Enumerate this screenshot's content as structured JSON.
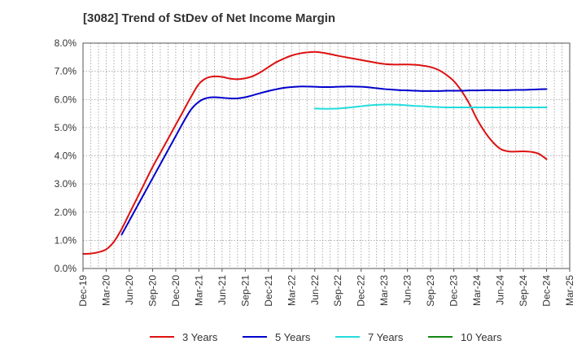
{
  "chart_data": {
    "type": "line",
    "title": "[3082]  Trend of StDev of Net Income Margin",
    "xlabel": "",
    "ylabel": "",
    "ylim": [
      0,
      8
    ],
    "grid": true,
    "legend_position": "bottom",
    "y_ticks": [
      "0.0%",
      "1.0%",
      "2.0%",
      "3.0%",
      "4.0%",
      "5.0%",
      "6.0%",
      "7.0%",
      "8.0%"
    ],
    "x_ticks": [
      "Dec-19",
      "Mar-20",
      "Jun-20",
      "Sep-20",
      "Dec-20",
      "Mar-21",
      "Jun-21",
      "Sep-21",
      "Dec-21",
      "Mar-22",
      "Jun-22",
      "Sep-22",
      "Dec-22",
      "Mar-23",
      "Jun-23",
      "Sep-23",
      "Dec-23",
      "Mar-24",
      "Jun-24",
      "Sep-24",
      "Dec-24",
      "Mar-25"
    ],
    "series": [
      {
        "name": "3 Years",
        "color": "#dd1111",
        "points": [
          [
            "Dec-19",
            0.52
          ],
          [
            "Jan-20",
            0.53
          ],
          [
            "Feb-20",
            0.58
          ],
          [
            "Mar-20",
            0.68
          ],
          [
            "Apr-20",
            0.95
          ],
          [
            "May-20",
            1.4
          ],
          [
            "Jun-20",
            1.95
          ],
          [
            "Jul-20",
            2.5
          ],
          [
            "Aug-20",
            3.05
          ],
          [
            "Sep-20",
            3.6
          ],
          [
            "Oct-20",
            4.1
          ],
          [
            "Nov-20",
            4.6
          ],
          [
            "Dec-20",
            5.1
          ],
          [
            "Jan-21",
            5.6
          ],
          [
            "Feb-21",
            6.1
          ],
          [
            "Mar-21",
            6.55
          ],
          [
            "Apr-21",
            6.76
          ],
          [
            "May-21",
            6.82
          ],
          [
            "Jun-21",
            6.8
          ],
          [
            "Jul-21",
            6.74
          ],
          [
            "Aug-21",
            6.72
          ],
          [
            "Sep-21",
            6.75
          ],
          [
            "Oct-21",
            6.83
          ],
          [
            "Nov-21",
            6.97
          ],
          [
            "Dec-21",
            7.15
          ],
          [
            "Jan-22",
            7.32
          ],
          [
            "Feb-22",
            7.45
          ],
          [
            "Mar-22",
            7.56
          ],
          [
            "Apr-22",
            7.63
          ],
          [
            "May-22",
            7.67
          ],
          [
            "Jun-22",
            7.69
          ],
          [
            "Jul-22",
            7.66
          ],
          [
            "Aug-22",
            7.61
          ],
          [
            "Sep-22",
            7.55
          ],
          [
            "Oct-22",
            7.5
          ],
          [
            "Nov-22",
            7.45
          ],
          [
            "Dec-22",
            7.4
          ],
          [
            "Jan-23",
            7.35
          ],
          [
            "Feb-23",
            7.3
          ],
          [
            "Mar-23",
            7.26
          ],
          [
            "Apr-23",
            7.24
          ],
          [
            "May-23",
            7.24
          ],
          [
            "Jun-23",
            7.24
          ],
          [
            "Jul-23",
            7.23
          ],
          [
            "Aug-23",
            7.2
          ],
          [
            "Sep-23",
            7.15
          ],
          [
            "Oct-23",
            7.05
          ],
          [
            "Nov-23",
            6.88
          ],
          [
            "Dec-23",
            6.65
          ],
          [
            "Jan-24",
            6.3
          ],
          [
            "Feb-24",
            5.85
          ],
          [
            "Mar-24",
            5.3
          ],
          [
            "Apr-24",
            4.85
          ],
          [
            "May-24",
            4.5
          ],
          [
            "Jun-24",
            4.25
          ],
          [
            "Jul-24",
            4.16
          ],
          [
            "Aug-24",
            4.15
          ],
          [
            "Sep-24",
            4.16
          ],
          [
            "Oct-24",
            4.14
          ],
          [
            "Nov-24",
            4.07
          ],
          [
            "Dec-24",
            3.88
          ]
        ]
      },
      {
        "name": "5 Years",
        "color": "#0000cc",
        "points": [
          [
            "May-20",
            1.2
          ],
          [
            "Jun-20",
            1.7
          ],
          [
            "Jul-20",
            2.2
          ],
          [
            "Aug-20",
            2.7
          ],
          [
            "Sep-20",
            3.2
          ],
          [
            "Oct-20",
            3.7
          ],
          [
            "Nov-20",
            4.2
          ],
          [
            "Dec-20",
            4.7
          ],
          [
            "Jan-21",
            5.2
          ],
          [
            "Feb-21",
            5.65
          ],
          [
            "Mar-21",
            5.92
          ],
          [
            "Apr-21",
            6.05
          ],
          [
            "May-21",
            6.08
          ],
          [
            "Jun-21",
            6.06
          ],
          [
            "Jul-21",
            6.04
          ],
          [
            "Aug-21",
            6.04
          ],
          [
            "Sep-21",
            6.08
          ],
          [
            "Oct-21",
            6.15
          ],
          [
            "Nov-21",
            6.23
          ],
          [
            "Dec-21",
            6.3
          ],
          [
            "Jan-22",
            6.36
          ],
          [
            "Feb-22",
            6.41
          ],
          [
            "Mar-22",
            6.44
          ],
          [
            "Apr-22",
            6.46
          ],
          [
            "May-22",
            6.46
          ],
          [
            "Jun-22",
            6.45
          ],
          [
            "Jul-22",
            6.44
          ],
          [
            "Aug-22",
            6.44
          ],
          [
            "Sep-22",
            6.45
          ],
          [
            "Oct-22",
            6.46
          ],
          [
            "Nov-22",
            6.46
          ],
          [
            "Dec-22",
            6.45
          ],
          [
            "Jan-23",
            6.43
          ],
          [
            "Feb-23",
            6.4
          ],
          [
            "Mar-23",
            6.37
          ],
          [
            "Apr-23",
            6.35
          ],
          [
            "May-23",
            6.33
          ],
          [
            "Jun-23",
            6.32
          ],
          [
            "Jul-23",
            6.31
          ],
          [
            "Aug-23",
            6.3
          ],
          [
            "Sep-23",
            6.3
          ],
          [
            "Oct-23",
            6.3
          ],
          [
            "Nov-23",
            6.31
          ],
          [
            "Dec-23",
            6.31
          ],
          [
            "Jan-24",
            6.31
          ],
          [
            "Feb-24",
            6.32
          ],
          [
            "Mar-24",
            6.32
          ],
          [
            "Apr-24",
            6.33
          ],
          [
            "May-24",
            6.33
          ],
          [
            "Jun-24",
            6.33
          ],
          [
            "Jul-24",
            6.33
          ],
          [
            "Aug-24",
            6.34
          ],
          [
            "Sep-24",
            6.34
          ],
          [
            "Oct-24",
            6.35
          ],
          [
            "Nov-24",
            6.36
          ],
          [
            "Dec-24",
            6.37
          ]
        ]
      },
      {
        "name": "7 Years",
        "color": "#22dddd",
        "points": [
          [
            "Jun-22",
            5.68
          ],
          [
            "Jul-22",
            5.67
          ],
          [
            "Aug-22",
            5.67
          ],
          [
            "Sep-22",
            5.68
          ],
          [
            "Oct-22",
            5.7
          ],
          [
            "Nov-22",
            5.73
          ],
          [
            "Dec-22",
            5.76
          ],
          [
            "Jan-23",
            5.79
          ],
          [
            "Feb-23",
            5.81
          ],
          [
            "Mar-23",
            5.82
          ],
          [
            "Apr-23",
            5.82
          ],
          [
            "May-23",
            5.81
          ],
          [
            "Jun-23",
            5.79
          ],
          [
            "Jul-23",
            5.77
          ],
          [
            "Aug-23",
            5.76
          ],
          [
            "Sep-23",
            5.74
          ],
          [
            "Oct-23",
            5.73
          ],
          [
            "Nov-23",
            5.72
          ],
          [
            "Dec-23",
            5.72
          ],
          [
            "Jan-24",
            5.72
          ],
          [
            "Feb-24",
            5.72
          ],
          [
            "Mar-24",
            5.72
          ],
          [
            "Apr-24",
            5.72
          ],
          [
            "May-24",
            5.72
          ],
          [
            "Jun-24",
            5.72
          ],
          [
            "Jul-24",
            5.72
          ],
          [
            "Aug-24",
            5.72
          ],
          [
            "Sep-24",
            5.72
          ],
          [
            "Oct-24",
            5.72
          ],
          [
            "Nov-24",
            5.72
          ],
          [
            "Dec-24",
            5.72
          ]
        ]
      },
      {
        "name": "10 Years",
        "color": "#118811",
        "points": []
      }
    ]
  }
}
